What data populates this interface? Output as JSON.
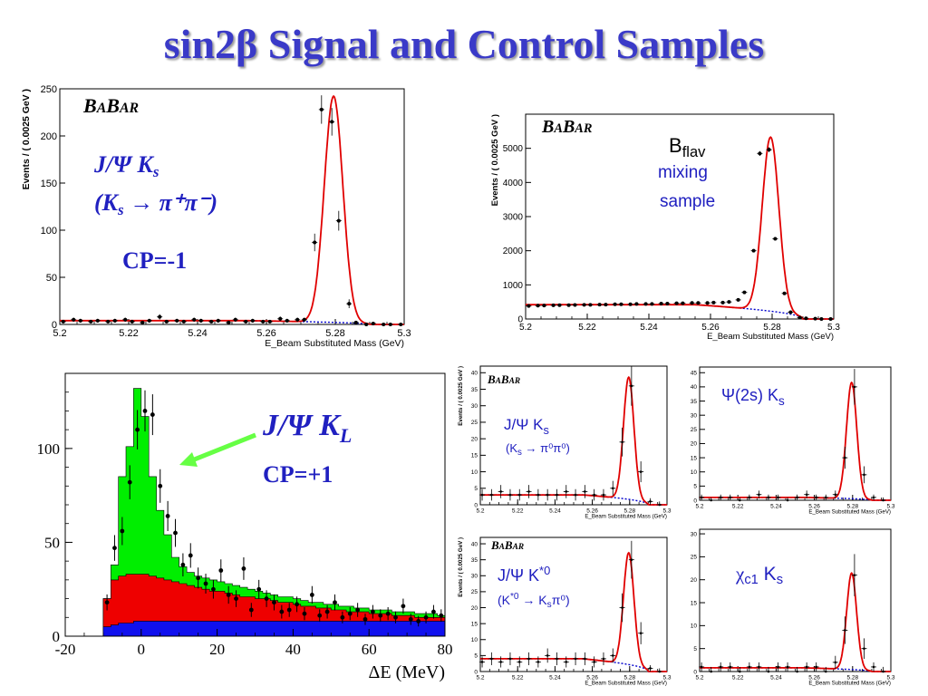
{
  "page": {
    "title": "sin2β Signal and Control Samples"
  },
  "colors": {
    "fit": "#e00000",
    "background_fit": "#0000cc",
    "annotation": "#2020c0",
    "arrow": "#66ff44",
    "green": "#00ee00",
    "red": "#ee0000",
    "blue": "#1010ee"
  },
  "chart_data": [
    {
      "id": "jpsi-ks-pipi",
      "type": "scatter",
      "logo": "BABAR",
      "label_line1": "J/Ψ K",
      "label_line1_sub": "s",
      "label_line2": "(K",
      "label_line2_sub": "s",
      "label_line2_rest": " → π⁺π⁻)",
      "cp_label": "CP=-1",
      "xlabel": "E_Beam Substituted Mass (GeV)",
      "ylabel": "Events / ( 0.0025 GeV )",
      "xlim": [
        5.2,
        5.3
      ],
      "ylim": [
        0,
        250
      ],
      "xticks": [
        "5.2",
        "5.22",
        "5.24",
        "5.26",
        "5.28",
        "5.3"
      ],
      "yticks": [
        "0",
        "50",
        "100",
        "150",
        "200",
        "250"
      ],
      "points": {
        "x": [
          5.201,
          5.204,
          5.206,
          5.209,
          5.211,
          5.214,
          5.216,
          5.219,
          5.221,
          5.224,
          5.226,
          5.229,
          5.231,
          5.234,
          5.236,
          5.239,
          5.241,
          5.244,
          5.246,
          5.249,
          5.251,
          5.254,
          5.256,
          5.259,
          5.261,
          5.264,
          5.266,
          5.269,
          5.271,
          5.274,
          5.276,
          5.279,
          5.281,
          5.284,
          5.286,
          5.289,
          5.291,
          5.294,
          5.296,
          5.299
        ],
        "y": [
          3,
          5,
          4,
          3,
          4,
          3,
          4,
          5,
          3,
          2,
          4,
          8,
          3,
          4,
          3,
          5,
          4,
          3,
          4,
          2,
          5,
          3,
          4,
          3,
          3,
          6,
          4,
          5,
          5,
          87,
          228,
          215,
          110,
          22,
          2,
          0,
          1,
          0,
          0,
          0
        ]
      },
      "fit": {
        "peak": 5.2795,
        "sigma": 0.0027,
        "amp": 240,
        "bkg": 4,
        "endpoint": 5.29
      }
    },
    {
      "id": "bflav-mixing",
      "type": "scatter",
      "logo": "BABAR",
      "label_line1": "B",
      "label_line1_sub": "flav",
      "label_line2": "mixing",
      "label_line3": "sample",
      "xlabel": "E_Beam Substituted Mass (GeV)",
      "ylabel": "Events / ( 0.0025 GeV )",
      "xlim": [
        5.2,
        5.3
      ],
      "ylim": [
        0,
        6000
      ],
      "xticks": [
        "5.2",
        "5.22",
        "5.24",
        "5.26",
        "5.28",
        "5.3"
      ],
      "yticks": [
        "0",
        "1000",
        "2000",
        "3000",
        "4000",
        "5000"
      ],
      "points": {
        "x": [
          5.201,
          5.204,
          5.206,
          5.209,
          5.211,
          5.214,
          5.216,
          5.219,
          5.221,
          5.224,
          5.226,
          5.229,
          5.231,
          5.234,
          5.236,
          5.239,
          5.241,
          5.244,
          5.246,
          5.249,
          5.251,
          5.254,
          5.256,
          5.259,
          5.261,
          5.264,
          5.266,
          5.269,
          5.271,
          5.274,
          5.276,
          5.279,
          5.281,
          5.284,
          5.286,
          5.289,
          5.291,
          5.294,
          5.296,
          5.299
        ],
        "y": [
          380,
          390,
          395,
          400,
          405,
          405,
          410,
          415,
          415,
          420,
          420,
          430,
          430,
          430,
          440,
          440,
          440,
          450,
          450,
          460,
          460,
          470,
          470,
          470,
          480,
          480,
          500,
          560,
          780,
          2000,
          4850,
          4960,
          2350,
          750,
          200,
          40,
          20,
          10,
          0,
          0
        ]
      },
      "fit": {
        "peak": 5.2795,
        "sigma": 0.0027,
        "amp": 5100,
        "bkg": 420,
        "endpoint": 5.29
      }
    },
    {
      "id": "jpsi-kl-deltae",
      "type": "histogram",
      "label": "J/Ψ K",
      "label_sub": "L",
      "cp_label": "CP=+1",
      "xlabel": "ΔE (MeV)",
      "xlim": [
        -20,
        80
      ],
      "ylim": [
        0,
        140
      ],
      "xticks": [
        "-20",
        "0",
        "20",
        "40",
        "60",
        "80"
      ],
      "yticks": [
        "0",
        "50",
        "100"
      ],
      "bin_edges": [
        -20,
        -10,
        -8,
        -6,
        -4,
        -2,
        0,
        2,
        4,
        6,
        8,
        10,
        12,
        14,
        16,
        18,
        20,
        22,
        24,
        26,
        28,
        30,
        32,
        34,
        36,
        38,
        40,
        42,
        44,
        46,
        48,
        50,
        52,
        54,
        56,
        58,
        60,
        62,
        64,
        66,
        68,
        70,
        72,
        74,
        76,
        78,
        80
      ],
      "total": [
        0,
        20,
        38,
        85,
        101,
        132,
        117,
        85,
        67,
        54,
        42,
        37,
        34,
        32,
        31,
        30,
        29,
        28,
        27,
        26,
        25,
        24,
        23,
        22,
        21,
        21,
        20,
        19,
        18,
        18,
        17,
        17,
        16,
        16,
        15,
        15,
        14,
        14,
        14,
        13,
        13,
        13,
        12,
        12,
        12,
        11
      ],
      "red_plus_blue": [
        0,
        20,
        30,
        32,
        33,
        33,
        33,
        32,
        31,
        30,
        29,
        28,
        27,
        26,
        25,
        24,
        24,
        23,
        22,
        21,
        21,
        20,
        20,
        19,
        18,
        18,
        17,
        16,
        16,
        15,
        15,
        14,
        14,
        13,
        13,
        13,
        12,
        12,
        12,
        11,
        11,
        11,
        10,
        10,
        10,
        10
      ],
      "blue": [
        0,
        5,
        6,
        7,
        7,
        8,
        8,
        8,
        8,
        8,
        8,
        8,
        8,
        8,
        8,
        8,
        8,
        8,
        8,
        8,
        8,
        8,
        8,
        8,
        8,
        8,
        8,
        8,
        8,
        8,
        8,
        8,
        8,
        8,
        8,
        8,
        8,
        8,
        8,
        8,
        8,
        8,
        8,
        8,
        8,
        8
      ],
      "points": {
        "x": [
          -9,
          -7,
          -5,
          -3,
          -1,
          1,
          3,
          5,
          7,
          9,
          11,
          13,
          15,
          17,
          19,
          21,
          23,
          25,
          27,
          29,
          31,
          33,
          35,
          37,
          39,
          41,
          43,
          45,
          47,
          49,
          51,
          53,
          55,
          57,
          59,
          61,
          63,
          65,
          67,
          69,
          71,
          73,
          75,
          77,
          79
        ],
        "y": [
          18,
          47,
          56,
          82,
          110,
          120,
          118,
          80,
          64,
          55,
          38,
          43,
          31,
          28,
          25,
          35,
          22,
          20,
          36,
          14,
          25,
          20,
          18,
          13,
          14,
          17,
          12,
          22,
          11,
          13,
          18,
          10,
          12,
          14,
          9,
          13,
          11,
          12,
          10,
          16,
          9,
          8,
          10,
          13,
          11
        ]
      }
    },
    {
      "id": "jpsi-ks-pi0pi0",
      "type": "scatter",
      "logo": "BABAR",
      "label_line1": "J/Ψ K",
      "label_line1_sub": "s",
      "label_line2": "(K",
      "label_line2_sub": "s",
      "label_line2_rest": " → π⁰π⁰)",
      "xlabel": "E_Beam Substituted Mass (GeV)",
      "ylabel": "Events / ( 0.0025 GeV )",
      "xlim": [
        5.2,
        5.3
      ],
      "ylim": [
        0,
        42
      ],
      "xticks": [
        "5.2",
        "5.22",
        "5.24",
        "5.26",
        "5.28",
        "5.3"
      ],
      "yticks": [
        "0",
        "5",
        "10",
        "15",
        "20",
        "25",
        "30",
        "35",
        "40"
      ],
      "points": {
        "x": [
          5.201,
          5.206,
          5.211,
          5.216,
          5.221,
          5.226,
          5.231,
          5.236,
          5.241,
          5.246,
          5.251,
          5.256,
          5.261,
          5.266,
          5.271,
          5.276,
          5.281,
          5.286,
          5.291,
          5.296
        ],
        "y": [
          3,
          3,
          4,
          3,
          3,
          4,
          3,
          3,
          3,
          4,
          3,
          4,
          3,
          3,
          5,
          19,
          36,
          10,
          1,
          0
        ]
      },
      "fit": {
        "peak": 5.2795,
        "sigma": 0.0028,
        "amp": 37,
        "bkg": 3,
        "endpoint": 5.29
      }
    },
    {
      "id": "psi2s-ks",
      "type": "scatter",
      "label_line1": "Ψ(2s) K",
      "label_line1_sub": "s",
      "xlabel": "E_Beam Substituted Mass (GeV)",
      "xlim": [
        5.2,
        5.3
      ],
      "ylim": [
        0,
        47
      ],
      "xticks": [
        "5.2",
        "5.22",
        "5.24",
        "5.26",
        "5.28",
        "5.3"
      ],
      "yticks": [
        "0",
        "5",
        "10",
        "15",
        "20",
        "25",
        "30",
        "35",
        "40",
        "45"
      ],
      "points": {
        "x": [
          5.201,
          5.206,
          5.211,
          5.216,
          5.221,
          5.226,
          5.231,
          5.236,
          5.241,
          5.246,
          5.251,
          5.256,
          5.261,
          5.266,
          5.271,
          5.276,
          5.281,
          5.286,
          5.291,
          5.296
        ],
        "y": [
          1,
          0,
          1,
          1,
          0,
          1,
          2,
          1,
          1,
          0,
          1,
          2,
          1,
          1,
          2,
          15,
          40,
          9,
          1,
          0
        ]
      },
      "fit": {
        "peak": 5.2795,
        "sigma": 0.0027,
        "amp": 41,
        "bkg": 1,
        "endpoint": 5.29
      }
    },
    {
      "id": "jpsi-kstar0",
      "type": "scatter",
      "logo": "BABAR",
      "label_line1": "J/Ψ K",
      "label_line1_sup": "*0",
      "label_line2": "(K",
      "label_line2_sup": "*0",
      "label_line2_rest": " → K",
      "label_line2_sub": "s",
      "label_line2_end": "π⁰)",
      "xlabel": "E_Beam Substituted Mass (GeV)",
      "ylabel": "Events / ( 0.0025 GeV )",
      "xlim": [
        5.2,
        5.3
      ],
      "ylim": [
        0,
        42
      ],
      "xticks": [
        "5.2",
        "5.22",
        "5.24",
        "5.26",
        "5.28",
        "5.3"
      ],
      "yticks": [
        "0",
        "5",
        "10",
        "15",
        "20",
        "25",
        "30",
        "35",
        "40"
      ],
      "points": {
        "x": [
          5.201,
          5.206,
          5.211,
          5.216,
          5.221,
          5.226,
          5.231,
          5.236,
          5.241,
          5.246,
          5.251,
          5.256,
          5.261,
          5.266,
          5.271,
          5.276,
          5.281,
          5.286,
          5.291,
          5.296
        ],
        "y": [
          3,
          4,
          3,
          4,
          3,
          4,
          3,
          5,
          4,
          3,
          4,
          4,
          3,
          4,
          5,
          20,
          35,
          12,
          1,
          0
        ]
      },
      "fit": {
        "peak": 5.2795,
        "sigma": 0.0028,
        "amp": 35,
        "bkg": 4,
        "endpoint": 5.29
      }
    },
    {
      "id": "chic1-ks",
      "type": "scatter",
      "label_line1": "χ",
      "label_line1_sub": "c1",
      "label_line1_rest": " K",
      "label_line1_sub2": "s",
      "xlabel": "E_Beam Substituted Mass (GeV)",
      "xlim": [
        5.2,
        5.3
      ],
      "ylim": [
        0,
        31
      ],
      "xticks": [
        "5.2",
        "5.22",
        "5.24",
        "5.26",
        "5.28",
        "5.3"
      ],
      "yticks": [
        "0",
        "5",
        "10",
        "15",
        "20",
        "25",
        "30"
      ],
      "points": {
        "x": [
          5.201,
          5.206,
          5.211,
          5.216,
          5.221,
          5.226,
          5.231,
          5.236,
          5.241,
          5.246,
          5.251,
          5.256,
          5.261,
          5.266,
          5.271,
          5.276,
          5.281,
          5.286,
          5.291,
          5.296
        ],
        "y": [
          1,
          0,
          1,
          1,
          0,
          1,
          1,
          0,
          1,
          1,
          0,
          1,
          1,
          0,
          2,
          9,
          21,
          5,
          1,
          0
        ]
      },
      "fit": {
        "peak": 5.2795,
        "sigma": 0.0026,
        "amp": 21,
        "bkg": 0.8,
        "endpoint": 5.29
      }
    }
  ]
}
